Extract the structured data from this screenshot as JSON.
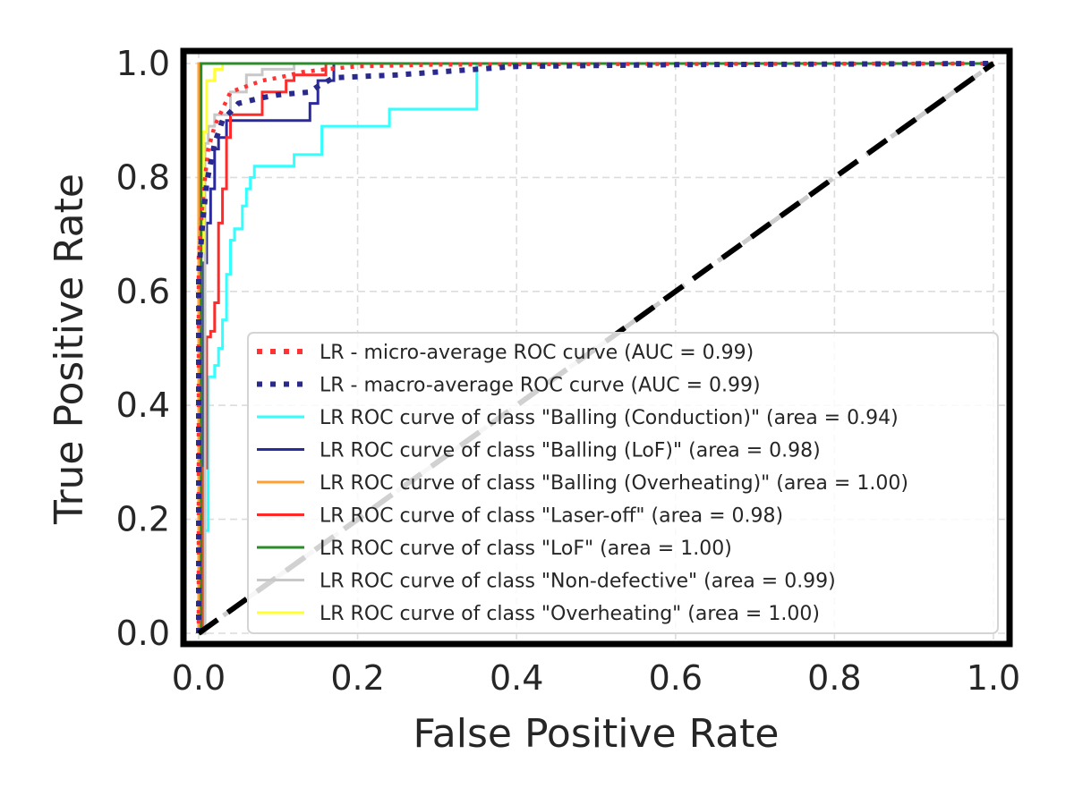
{
  "chart_data": {
    "type": "line",
    "title": "",
    "xlabel": "False Positive Rate",
    "ylabel": "True Positive Rate",
    "xlim": [
      0.0,
      1.0
    ],
    "ylim": [
      0.0,
      1.0
    ],
    "x_ticks": [
      "0.0",
      "0.2",
      "0.4",
      "0.6",
      "0.8",
      "1.0"
    ],
    "y_ticks": [
      "0.0",
      "0.2",
      "0.4",
      "0.6",
      "0.8",
      "1.0"
    ],
    "grid": true,
    "legend_position": "lower-right",
    "series": [
      {
        "name": "LR - micro-average ROC curve (AUC = 0.99)",
        "color": "#ff3333",
        "style": "dotted",
        "points": [
          [
            0,
            0
          ],
          [
            0,
            0.66
          ],
          [
            0.004,
            0.74
          ],
          [
            0.008,
            0.8
          ],
          [
            0.012,
            0.85
          ],
          [
            0.02,
            0.89
          ],
          [
            0.03,
            0.92
          ],
          [
            0.04,
            0.95
          ],
          [
            0.06,
            0.96
          ],
          [
            0.08,
            0.97
          ],
          [
            0.1,
            0.975
          ],
          [
            0.13,
            0.985
          ],
          [
            0.16,
            0.99
          ],
          [
            0.2,
            0.995
          ],
          [
            0.3,
            0.998
          ],
          [
            0.5,
            0.999
          ],
          [
            1,
            1
          ]
        ]
      },
      {
        "name": "LR - macro-average ROC curve (AUC = 0.99)",
        "color": "#2a2a8c",
        "style": "dotted",
        "points": [
          [
            0,
            0
          ],
          [
            0,
            0.63
          ],
          [
            0.005,
            0.72
          ],
          [
            0.01,
            0.79
          ],
          [
            0.02,
            0.86
          ],
          [
            0.03,
            0.9
          ],
          [
            0.05,
            0.93
          ],
          [
            0.08,
            0.94
          ],
          [
            0.1,
            0.945
          ],
          [
            0.14,
            0.95
          ],
          [
            0.15,
            0.96
          ],
          [
            0.17,
            0.975
          ],
          [
            0.25,
            0.98
          ],
          [
            0.35,
            0.99
          ],
          [
            0.4,
            0.995
          ],
          [
            0.6,
            0.998
          ],
          [
            1,
            1
          ]
        ]
      },
      {
        "name": "LR ROC curve of class \"Balling (Conduction)\" (area = 0.94)",
        "color": "#33ffff",
        "style": "solid",
        "points": [
          [
            0,
            0
          ],
          [
            0.007,
            0
          ],
          [
            0.007,
            0.18
          ],
          [
            0.012,
            0.18
          ],
          [
            0.012,
            0.45
          ],
          [
            0.02,
            0.45
          ],
          [
            0.02,
            0.47
          ],
          [
            0.025,
            0.47
          ],
          [
            0.025,
            0.5
          ],
          [
            0.03,
            0.5
          ],
          [
            0.03,
            0.55
          ],
          [
            0.035,
            0.55
          ],
          [
            0.035,
            0.63
          ],
          [
            0.04,
            0.63
          ],
          [
            0.04,
            0.69
          ],
          [
            0.045,
            0.69
          ],
          [
            0.045,
            0.71
          ],
          [
            0.055,
            0.71
          ],
          [
            0.055,
            0.75
          ],
          [
            0.06,
            0.75
          ],
          [
            0.06,
            0.78
          ],
          [
            0.065,
            0.78
          ],
          [
            0.065,
            0.8
          ],
          [
            0.07,
            0.8
          ],
          [
            0.07,
            0.82
          ],
          [
            0.12,
            0.82
          ],
          [
            0.12,
            0.84
          ],
          [
            0.155,
            0.84
          ],
          [
            0.155,
            0.89
          ],
          [
            0.24,
            0.89
          ],
          [
            0.24,
            0.92
          ],
          [
            0.35,
            0.92
          ],
          [
            0.35,
            1.0
          ],
          [
            1,
            1
          ]
        ]
      },
      {
        "name": "LR ROC curve of class \"Balling (LoF)\" (area = 0.98)",
        "color": "#2a2a9c",
        "style": "solid",
        "points": [
          [
            0,
            0
          ],
          [
            0.005,
            0
          ],
          [
            0.005,
            0.65
          ],
          [
            0.01,
            0.65
          ],
          [
            0.01,
            0.72
          ],
          [
            0.015,
            0.72
          ],
          [
            0.015,
            0.78
          ],
          [
            0.02,
            0.78
          ],
          [
            0.02,
            0.85
          ],
          [
            0.025,
            0.85
          ],
          [
            0.025,
            0.87
          ],
          [
            0.035,
            0.87
          ],
          [
            0.035,
            0.9
          ],
          [
            0.14,
            0.9
          ],
          [
            0.14,
            0.93
          ],
          [
            0.15,
            0.93
          ],
          [
            0.15,
            0.97
          ],
          [
            0.17,
            0.97
          ],
          [
            0.17,
            1.0
          ],
          [
            1,
            1
          ]
        ]
      },
      {
        "name": "LR ROC curve of class \"Balling (Overheating)\" (area = 1.00)",
        "color": "#ffa033",
        "style": "solid",
        "points": [
          [
            0,
            0
          ],
          [
            0,
            1.0
          ],
          [
            1,
            1
          ]
        ]
      },
      {
        "name": "LR ROC curve of class \"Laser-off\" (area = 0.98)",
        "color": "#ff2a2a",
        "style": "solid",
        "points": [
          [
            0,
            0
          ],
          [
            0.005,
            0
          ],
          [
            0.005,
            0.29
          ],
          [
            0.01,
            0.29
          ],
          [
            0.01,
            0.52
          ],
          [
            0.015,
            0.52
          ],
          [
            0.015,
            0.53
          ],
          [
            0.02,
            0.53
          ],
          [
            0.02,
            0.58
          ],
          [
            0.025,
            0.58
          ],
          [
            0.025,
            0.72
          ],
          [
            0.03,
            0.72
          ],
          [
            0.03,
            0.78
          ],
          [
            0.035,
            0.78
          ],
          [
            0.035,
            0.87
          ],
          [
            0.04,
            0.87
          ],
          [
            0.04,
            0.91
          ],
          [
            0.08,
            0.91
          ],
          [
            0.08,
            0.95
          ],
          [
            0.11,
            0.95
          ],
          [
            0.11,
            0.97
          ],
          [
            0.12,
            0.97
          ],
          [
            0.12,
            0.98
          ],
          [
            0.16,
            0.98
          ],
          [
            0.16,
            1.0
          ],
          [
            1,
            1
          ]
        ]
      },
      {
        "name": "LR ROC curve of class \"LoF\" (area = 1.00)",
        "color": "#2a8c2a",
        "style": "solid",
        "points": [
          [
            0,
            0
          ],
          [
            0.003,
            0
          ],
          [
            0.003,
            1.0
          ],
          [
            1,
            1
          ]
        ]
      },
      {
        "name": "LR ROC curve of class \"Non-defective\" (area = 0.99)",
        "color": "#c8c8c8",
        "style": "solid",
        "points": [
          [
            0,
            0
          ],
          [
            0.008,
            0
          ],
          [
            0.008,
            0.86
          ],
          [
            0.012,
            0.86
          ],
          [
            0.012,
            0.89
          ],
          [
            0.02,
            0.89
          ],
          [
            0.02,
            0.91
          ],
          [
            0.04,
            0.91
          ],
          [
            0.04,
            0.95
          ],
          [
            0.06,
            0.95
          ],
          [
            0.06,
            0.98
          ],
          [
            0.08,
            0.98
          ],
          [
            0.08,
            0.99
          ],
          [
            0.12,
            0.99
          ],
          [
            0.12,
            1.0
          ],
          [
            1,
            1
          ]
        ]
      },
      {
        "name": "LR ROC curve of class \"Overheating\" (area = 1.00)",
        "color": "#ffff33",
        "style": "solid",
        "points": [
          [
            0,
            0
          ],
          [
            0.003,
            0
          ],
          [
            0.003,
            0.67
          ],
          [
            0.006,
            0.67
          ],
          [
            0.006,
            0.88
          ],
          [
            0.01,
            0.88
          ],
          [
            0.01,
            0.97
          ],
          [
            0.02,
            0.97
          ],
          [
            0.02,
            0.99
          ],
          [
            0.03,
            0.99
          ],
          [
            0.03,
            1.0
          ],
          [
            1,
            1
          ]
        ]
      }
    ],
    "reference_lines": [
      {
        "color": "#cccccc",
        "style": "dashed",
        "points": [
          [
            0,
            0
          ],
          [
            1,
            1
          ]
        ]
      },
      {
        "color": "#000000",
        "style": "dashed",
        "points": [
          [
            0,
            0
          ],
          [
            1,
            1
          ]
        ]
      }
    ]
  }
}
